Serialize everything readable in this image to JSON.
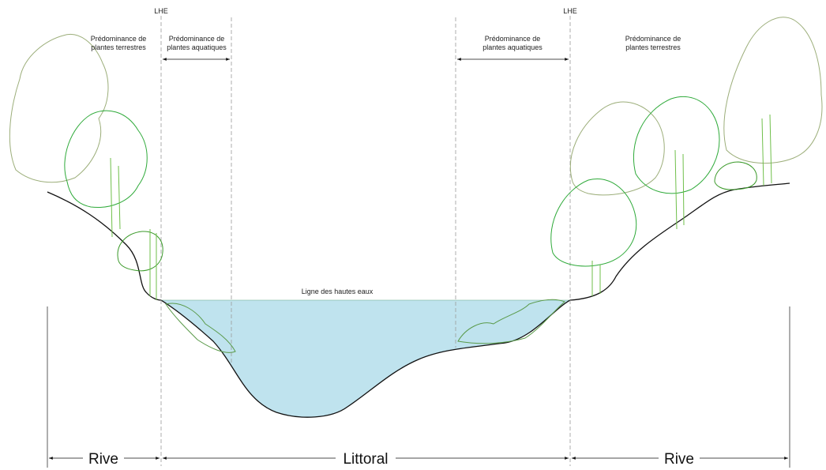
{
  "labels": {
    "lhe_left": "LHE",
    "lhe_right": "LHE",
    "left_terrestrial": [
      "Prédominance de",
      "plantes terrestres"
    ],
    "left_aquatic": [
      "Prédominance de",
      "plantes aquatiques"
    ],
    "right_aquatic": [
      "Prédominance de",
      "plantes aquatiques"
    ],
    "right_terrestrial": [
      "Prédominance de",
      "plantes terrestres"
    ],
    "water_line": "Ligne des hautes eaux",
    "zone_left": "Rive",
    "zone_middle": "Littoral",
    "zone_right": "Rive"
  }
}
